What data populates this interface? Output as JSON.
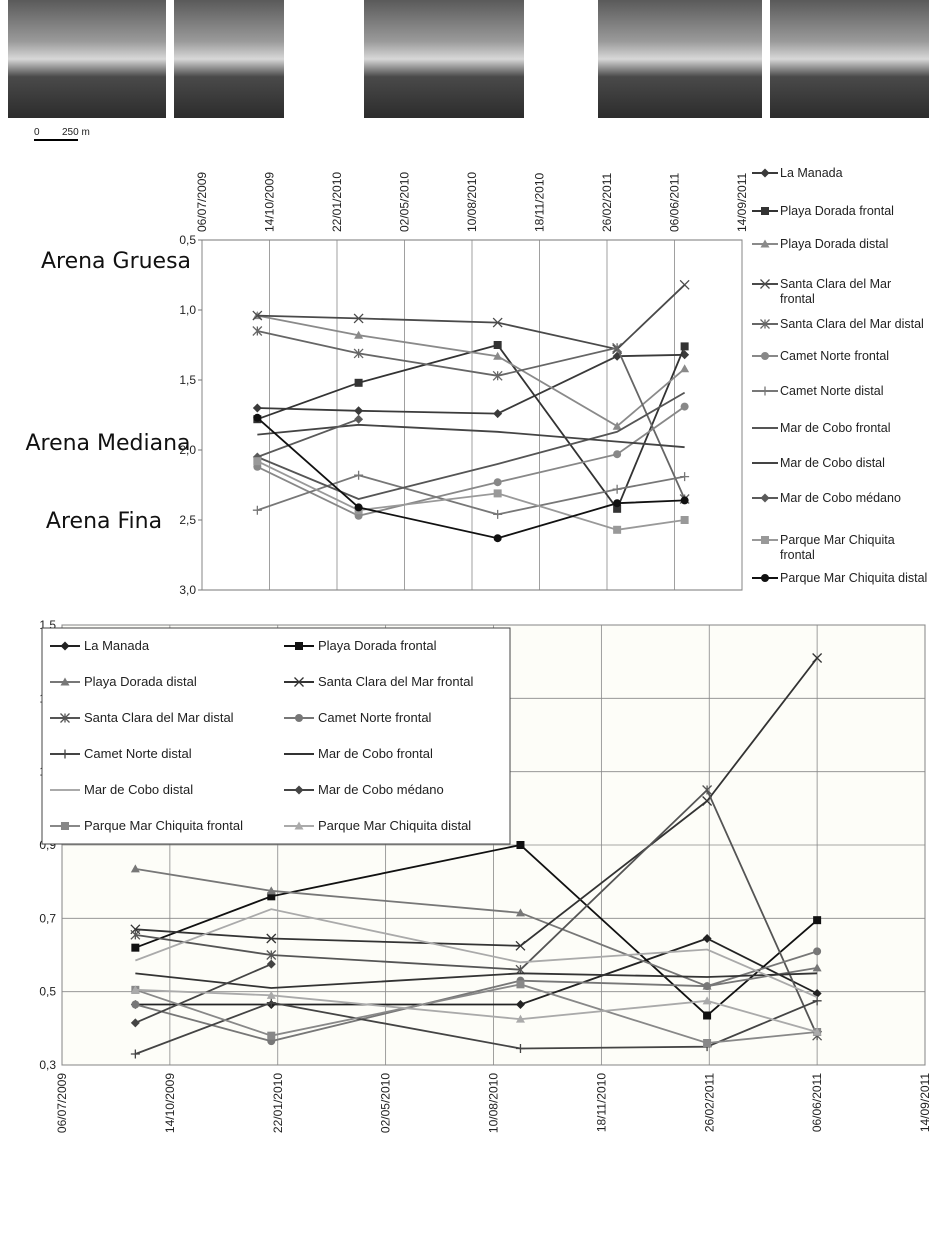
{
  "scale_bar": {
    "zero": "0",
    "distance": "250 m"
  },
  "chart_data": [
    {
      "type": "line",
      "x": [
        "2009-09-26",
        "2010-02-23",
        "2010-09-17",
        "2011-03-13",
        "2011-06-21"
      ],
      "xlim": [
        "2009-07-06",
        "2011-09-14"
      ],
      "xticks": [
        {
          "value": "2009-07-06",
          "label": "06/07/2009"
        },
        {
          "value": "2009-10-14",
          "label": "14/10/2009"
        },
        {
          "value": "2010-01-22",
          "label": "22/01/2010"
        },
        {
          "value": "2010-05-02",
          "label": "02/05/2010"
        },
        {
          "value": "2010-08-10",
          "label": "10/08/2010"
        },
        {
          "value": "2010-11-18",
          "label": "18/11/2010"
        },
        {
          "value": "2011-02-26",
          "label": "26/02/2011"
        },
        {
          "value": "2011-06-06",
          "label": "06/06/2011"
        },
        {
          "value": "2011-09-14",
          "label": "14/09/2011"
        }
      ],
      "ylim": [
        0.5,
        3.0
      ],
      "reversed": true,
      "yticks": [
        {
          "value": 0.5,
          "label": "0,5"
        },
        {
          "value": 1.0,
          "label": "1,0"
        },
        {
          "value": 1.5,
          "label": "1,5"
        },
        {
          "value": 2.0,
          "label": "2,0"
        },
        {
          "value": 2.5,
          "label": "2,5"
        },
        {
          "value": 3.0,
          "label": "3,0"
        }
      ],
      "xgrid": true,
      "ygrid": false,
      "legend": "right",
      "annotations": [
        "Arena Gruesa",
        "Arena Mediana",
        "Arena Fina"
      ],
      "series": [
        {
          "name": "La Manada",
          "color": "#3a3a3a",
          "marker": "diamond",
          "values": [
            1.7,
            1.72,
            1.74,
            1.33,
            1.32
          ]
        },
        {
          "name": "Playa Dorada frontal",
          "color": "#333333",
          "marker": "square",
          "values": [
            1.78,
            1.52,
            1.25,
            2.42,
            1.26
          ]
        },
        {
          "name": "Playa Dorada distal",
          "color": "#8a8a8a",
          "marker": "triangle",
          "values": [
            1.04,
            1.18,
            1.33,
            1.83,
            1.42
          ]
        },
        {
          "name": "Santa Clara del Mar frontal",
          "color": "#4a4a4a",
          "marker": "x",
          "values": [
            1.04,
            1.06,
            1.09,
            1.28,
            0.82
          ]
        },
        {
          "name": "Santa Clara del Mar distal",
          "color": "#666666",
          "marker": "star",
          "values": [
            1.15,
            1.31,
            1.47,
            1.27,
            2.35
          ]
        },
        {
          "name": "Camet Norte frontal",
          "color": "#888888",
          "marker": "circle",
          "values": [
            2.12,
            2.47,
            2.23,
            2.03,
            1.69
          ]
        },
        {
          "name": "Camet Norte distal",
          "color": "#777777",
          "marker": "plus",
          "values": [
            2.43,
            2.18,
            2.46,
            2.28,
            2.19
          ]
        },
        {
          "name": "Mar de Cobo frontal",
          "color": "#555555",
          "marker": "none",
          "values": [
            2.05,
            2.35,
            2.1,
            1.87,
            1.59
          ]
        },
        {
          "name": "Mar de Cobo distal",
          "color": "#444444",
          "marker": "none",
          "values": [
            1.89,
            1.82,
            1.87,
            1.94,
            1.98
          ]
        },
        {
          "name": "Mar de Cobo médano",
          "color": "#5a5a5a",
          "marker": "diamond",
          "values": [
            2.05,
            1.78,
            null,
            null,
            null
          ]
        },
        {
          "name": "Parque Mar Chiquita frontal",
          "color": "#999999",
          "marker": "square",
          "values": [
            2.08,
            2.43,
            2.31,
            2.57,
            2.5
          ]
        },
        {
          "name": "Parque Mar Chiquita distal",
          "color": "#111111",
          "marker": "circle",
          "values": [
            1.77,
            2.41,
            2.63,
            2.38,
            2.36
          ]
        }
      ]
    },
    {
      "type": "line",
      "x": [
        "2009-09-12",
        "2010-01-16",
        "2010-09-04",
        "2011-02-24",
        "2011-06-06"
      ],
      "xlim": [
        "2009-07-06",
        "2011-09-14"
      ],
      "xticks": [
        {
          "value": "2009-07-06",
          "label": "06/07/2009"
        },
        {
          "value": "2009-10-14",
          "label": "14/10/2009"
        },
        {
          "value": "2010-01-22",
          "label": "22/01/2010"
        },
        {
          "value": "2010-05-02",
          "label": "02/05/2010"
        },
        {
          "value": "2010-08-10",
          "label": "10/08/2010"
        },
        {
          "value": "2010-11-18",
          "label": "18/11/2010"
        },
        {
          "value": "2011-02-26",
          "label": "26/02/2011"
        },
        {
          "value": "2011-06-06",
          "label": "06/06/2011"
        },
        {
          "value": "2011-09-14",
          "label": "14/09/2011"
        }
      ],
      "ylim": [
        0.3,
        1.5
      ],
      "reversed": false,
      "yticks": [
        {
          "value": 0.3,
          "label": "0,3"
        },
        {
          "value": 0.5,
          "label": "0,5"
        },
        {
          "value": 0.7,
          "label": "0,7"
        },
        {
          "value": 0.9,
          "label": "0,9"
        },
        {
          "value": 1.1,
          "label": "1,1"
        },
        {
          "value": 1.3,
          "label": "1,3"
        },
        {
          "value": 1.5,
          "label": "1,5"
        }
      ],
      "xgrid": true,
      "ygrid": true,
      "legend": "upper left",
      "series": [
        {
          "name": "La Manada",
          "color": "#222222",
          "marker": "diamond",
          "values": [
            0.465,
            0.465,
            0.465,
            0.645,
            0.495
          ]
        },
        {
          "name": "Playa Dorada frontal",
          "color": "#111111",
          "marker": "square",
          "values": [
            0.62,
            0.76,
            0.9,
            0.435,
            0.695
          ]
        },
        {
          "name": "Playa Dorada distal",
          "color": "#777777",
          "marker": "triangle",
          "values": [
            0.835,
            0.775,
            0.715,
            0.515,
            0.565
          ]
        },
        {
          "name": "Santa Clara del Mar frontal",
          "color": "#333333",
          "marker": "x",
          "values": [
            0.67,
            0.645,
            0.625,
            1.02,
            1.41
          ]
        },
        {
          "name": "Santa Clara del Mar distal",
          "color": "#555555",
          "marker": "star",
          "values": [
            0.655,
            0.6,
            0.56,
            1.05,
            0.38
          ]
        },
        {
          "name": "Camet Norte frontal",
          "color": "#777777",
          "marker": "circle",
          "values": [
            0.465,
            0.365,
            0.53,
            0.515,
            0.61
          ]
        },
        {
          "name": "Camet Norte distal",
          "color": "#444444",
          "marker": "plus",
          "values": [
            0.33,
            0.47,
            0.345,
            0.35,
            0.475
          ]
        },
        {
          "name": "Mar de Cobo frontal",
          "color": "#333333",
          "marker": "none",
          "values": [
            0.55,
            0.51,
            0.55,
            0.54,
            0.55
          ]
        },
        {
          "name": "Mar de Cobo distal",
          "color": "#aaaaaa",
          "marker": "none",
          "values": [
            0.585,
            0.725,
            0.58,
            0.615,
            0.485
          ]
        },
        {
          "name": "Mar de Cobo médano",
          "color": "#444444",
          "marker": "diamond",
          "values": [
            0.415,
            0.575,
            null,
            null,
            null
          ]
        },
        {
          "name": "Parque Mar Chiquita frontal",
          "color": "#888888",
          "marker": "square",
          "values": [
            0.505,
            0.38,
            0.52,
            0.36,
            0.39
          ]
        },
        {
          "name": "Parque Mar Chiquita distal",
          "color": "#aaaaaa",
          "marker": "triangle",
          "values": [
            0.505,
            0.49,
            0.425,
            0.475,
            0.39
          ]
        }
      ]
    }
  ]
}
